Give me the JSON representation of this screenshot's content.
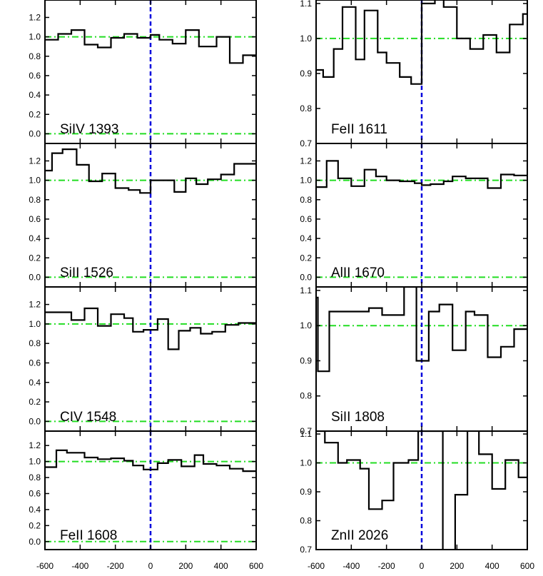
{
  "figure": {
    "x_ticks": [
      "-600",
      "-400",
      "-200",
      "0",
      "200",
      "400",
      "600"
    ]
  },
  "colors": {
    "axes": "#000000",
    "reference_line": "#22dd22",
    "zero_velocity_line": "#0000dd",
    "spectrum": "#000000"
  },
  "chart_data": [
    {
      "type": "line",
      "style": "step",
      "label": "SiIV 1393",
      "column": "left",
      "row": 0,
      "ylim": [
        -0.1,
        1.38
      ],
      "yticks": [
        0.0,
        0.2,
        0.4,
        0.6,
        0.8,
        1.0,
        1.2
      ],
      "ytick_labels": [
        "0.0",
        "0.2",
        "0.4",
        "0.6",
        "0.8",
        "1.0",
        "1.2"
      ],
      "xlim": [
        -600,
        600
      ],
      "reference_levels": [
        1.0,
        0.0
      ],
      "x": [
        -600,
        -525,
        -450,
        -375,
        -300,
        -225,
        -150,
        -75,
        0,
        50,
        125,
        200,
        275,
        375,
        450,
        525
      ],
      "y": [
        0.97,
        1.03,
        1.07,
        0.92,
        0.89,
        0.99,
        1.03,
        0.99,
        1.02,
        0.97,
        0.93,
        1.07,
        0.9,
        1.0,
        0.73,
        0.81
      ]
    },
    {
      "type": "line",
      "style": "step",
      "label": "SiII 1526",
      "column": "left",
      "row": 1,
      "ylim": [
        -0.1,
        1.38
      ],
      "yticks": [
        0.0,
        0.2,
        0.4,
        0.6,
        0.8,
        1.0,
        1.2
      ],
      "ytick_labels": [
        "0.0",
        "0.2",
        "0.4",
        "0.6",
        "0.8",
        "1.0",
        "1.2"
      ],
      "xlim": [
        -600,
        600
      ],
      "reference_levels": [
        1.0,
        0.0
      ],
      "x": [
        -600,
        -560,
        -500,
        -420,
        -350,
        -275,
        -200,
        -125,
        -60,
        0,
        135,
        200,
        260,
        325,
        400,
        475
      ],
      "y": [
        1.1,
        1.28,
        1.32,
        1.16,
        0.99,
        1.07,
        0.92,
        0.9,
        0.87,
        1.0,
        0.88,
        1.02,
        0.96,
        1.01,
        1.06,
        1.17
      ]
    },
    {
      "type": "line",
      "style": "step",
      "label": "CIV 1548",
      "column": "left",
      "row": 2,
      "ylim": [
        -0.1,
        1.38
      ],
      "yticks": [
        0.0,
        0.2,
        0.4,
        0.6,
        0.8,
        1.0,
        1.2
      ],
      "ytick_labels": [
        "0.0",
        "0.2",
        "0.4",
        "0.6",
        "0.8",
        "1.0",
        "1.2"
      ],
      "xlim": [
        -600,
        600
      ],
      "reference_levels": [
        1.0,
        0.0
      ],
      "x": [
        -600,
        -525,
        -450,
        -375,
        -300,
        -225,
        -150,
        -100,
        -40,
        40,
        100,
        160,
        225,
        285,
        350,
        425,
        500
      ],
      "y": [
        1.12,
        1.12,
        1.04,
        1.16,
        0.98,
        1.1,
        1.06,
        0.92,
        0.94,
        1.05,
        0.74,
        0.93,
        0.96,
        0.9,
        0.92,
        0.99,
        1.01
      ]
    },
    {
      "type": "line",
      "style": "step",
      "label": "FeII 1608",
      "column": "left",
      "row": 3,
      "ylim": [
        -0.1,
        1.38
      ],
      "yticks": [
        0.0,
        0.2,
        0.4,
        0.6,
        0.8,
        1.0,
        1.2
      ],
      "ytick_labels": [
        "0.0",
        "0.2",
        "0.4",
        "0.6",
        "0.8",
        "1.0",
        "1.2"
      ],
      "xlim": [
        -600,
        600
      ],
      "reference_levels": [
        1.0,
        0.0
      ],
      "x": [
        -600,
        -535,
        -475,
        -375,
        -300,
        -225,
        -150,
        -100,
        -40,
        40,
        100,
        175,
        250,
        300,
        375,
        450,
        525
      ],
      "y": [
        0.93,
        1.14,
        1.11,
        1.05,
        1.03,
        1.04,
        1.01,
        0.95,
        0.9,
        0.98,
        1.02,
        0.94,
        1.08,
        0.97,
        0.95,
        0.91,
        0.88
      ]
    },
    {
      "type": "line",
      "style": "step",
      "label": "FeII 1611",
      "column": "right",
      "row": 0,
      "ylim": [
        0.7,
        1.11
      ],
      "yticks": [
        0.7,
        0.8,
        0.9,
        1.0,
        1.1
      ],
      "ytick_labels": [
        "0.7",
        "0.8",
        "0.9",
        "1.0",
        "1.1"
      ],
      "xlim": [
        -600,
        600
      ],
      "reference_levels": [
        1.0
      ],
      "x": [
        -600,
        -560,
        -500,
        -450,
        -375,
        -325,
        -250,
        -200,
        -125,
        -60,
        0,
        75,
        125,
        200,
        275,
        350,
        425,
        500,
        575
      ],
      "y": [
        0.91,
        0.89,
        0.97,
        1.09,
        0.94,
        1.08,
        0.96,
        0.93,
        0.89,
        0.87,
        1.1,
        1.12,
        1.09,
        1.0,
        0.97,
        1.01,
        0.96,
        1.04,
        1.07
      ]
    },
    {
      "type": "line",
      "style": "step",
      "label": "AlII 1670",
      "column": "right",
      "row": 1,
      "ylim": [
        -0.1,
        1.38
      ],
      "yticks": [
        0.0,
        0.2,
        0.4,
        0.6,
        0.8,
        1.0,
        1.2
      ],
      "ytick_labels": [
        "0.0",
        "0.2",
        "0.4",
        "0.6",
        "0.8",
        "1.0",
        "1.2"
      ],
      "xlim": [
        -600,
        600
      ],
      "reference_levels": [
        1.0,
        0.0
      ],
      "x": [
        -600,
        -540,
        -475,
        -400,
        -325,
        -260,
        -200,
        -125,
        -40,
        0,
        50,
        125,
        175,
        250,
        375,
        450,
        525
      ],
      "y": [
        0.93,
        1.2,
        1.02,
        0.94,
        1.11,
        1.04,
        1.0,
        0.99,
        0.97,
        0.95,
        0.96,
        0.99,
        1.04,
        1.02,
        0.92,
        1.06,
        1.05
      ]
    },
    {
      "type": "line",
      "style": "step",
      "label": "SiII 1808",
      "column": "right",
      "row": 2,
      "ylim": [
        0.7,
        1.11
      ],
      "yticks": [
        0.7,
        0.8,
        0.9,
        1.0,
        1.1
      ],
      "ytick_labels": [
        "0.7",
        "0.8",
        "0.9",
        "1.0",
        "1.1"
      ],
      "xlim": [
        -600,
        600
      ],
      "reference_levels": [
        1.0
      ],
      "x": [
        -600,
        -590,
        -525,
        -400,
        -300,
        -225,
        -175,
        -100,
        -30,
        40,
        100,
        175,
        250,
        300,
        375,
        450,
        525
      ],
      "y": [
        1.08,
        0.87,
        1.04,
        1.04,
        1.05,
        1.03,
        1.03,
        1.11,
        0.9,
        1.04,
        1.06,
        0.93,
        1.04,
        1.03,
        0.91,
        0.94,
        0.99
      ]
    },
    {
      "type": "line",
      "style": "step",
      "label": "ZnII 2026",
      "column": "right",
      "row": 3,
      "ylim": [
        0.7,
        1.11
      ],
      "yticks": [
        0.7,
        0.8,
        0.9,
        1.0,
        1.1
      ],
      "ytick_labels": [
        "0.7",
        "0.8",
        "0.9",
        "1.0",
        "1.1"
      ],
      "xlim": [
        -600,
        600
      ],
      "reference_levels": [
        1.0
      ],
      "x": [
        -600,
        -550,
        -475,
        -425,
        -350,
        -300,
        -225,
        -160,
        -75,
        -20,
        120,
        190,
        260,
        325,
        400,
        475,
        550
      ],
      "y": [
        1.11,
        1.07,
        1.0,
        1.01,
        0.98,
        0.84,
        0.87,
        1.0,
        1.01,
        1.11,
        0.62,
        0.89,
        1.16,
        1.03,
        0.91,
        1.01,
        0.95
      ]
    }
  ]
}
